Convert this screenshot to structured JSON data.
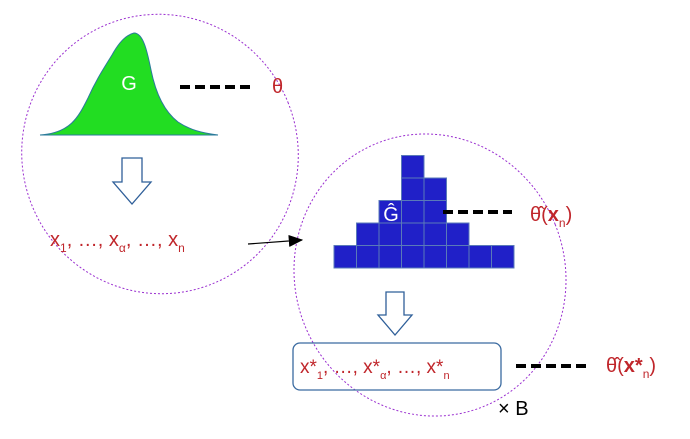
{
  "population": {
    "dist_label": "G",
    "param_label": "θ",
    "sample": {
      "x": "x",
      "s1": "1",
      "sa": "α",
      "sn": "n",
      "sep1": ", …, ",
      "sep2": ", …, ",
      "comma": ","
    }
  },
  "empirical": {
    "dist_label": "Ĝ",
    "estimate": {
      "theta": "θ̂",
      "open": "(",
      "x": "x",
      "sub": "n",
      "close": ")"
    },
    "histogram_columns": [
      1,
      2,
      3,
      5,
      4,
      2,
      1,
      1
    ]
  },
  "bootstrap": {
    "sample": {
      "x": "x*",
      "s1": "1",
      "sa": "α",
      "sn": "n",
      "sep1": ", …, ",
      "sep2": ", …, ",
      "comma": ","
    },
    "estimate": {
      "theta": "θ̂",
      "open": "(",
      "x": "x*",
      "sub": "n",
      "close": ")"
    },
    "repeat_label": "× B"
  },
  "colors": {
    "red": "#c0262b",
    "green": "#22dd22",
    "blue": "#2020c8",
    "ellipse": "#9a2fd0",
    "arrow": "#2f5f99",
    "box": "#3a6aa0"
  }
}
